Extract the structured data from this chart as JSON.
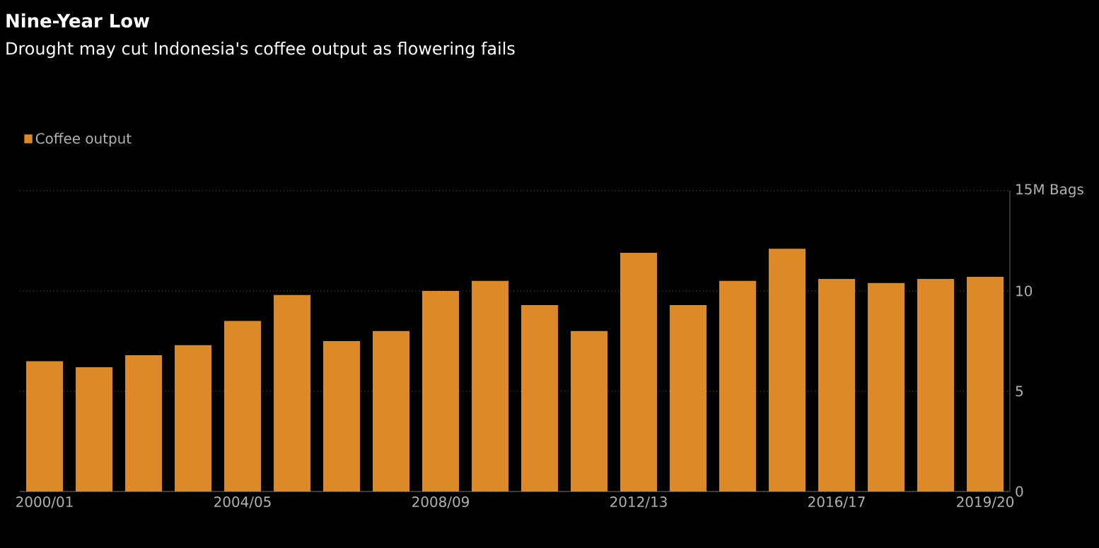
{
  "chart_data": {
    "type": "bar",
    "title": "Nine-Year Low",
    "subtitle": "Drought may cut Indonesia's coffee output as flowering fails",
    "categories": [
      "2000/01",
      null,
      null,
      null,
      "2004/05",
      null,
      null,
      null,
      "2008/09",
      null,
      null,
      null,
      "2012/13",
      null,
      null,
      null,
      "2016/17",
      null,
      null,
      "2019/20"
    ],
    "series": [
      {
        "name": "Coffee output",
        "color": "#dc8a28",
        "values": [
          6.5,
          6.2,
          6.8,
          7.3,
          8.5,
          9.8,
          7.5,
          8.0,
          10.0,
          10.5,
          9.3,
          8.0,
          11.9,
          9.3,
          10.5,
          12.1,
          10.6,
          10.4,
          10.6,
          10.7
        ]
      }
    ],
    "ylim": [
      0,
      15
    ],
    "yticks": [
      0,
      5,
      10,
      {
        "value": 15,
        "label": "15M Bags"
      }
    ],
    "grid": "y",
    "legend": "top left"
  }
}
